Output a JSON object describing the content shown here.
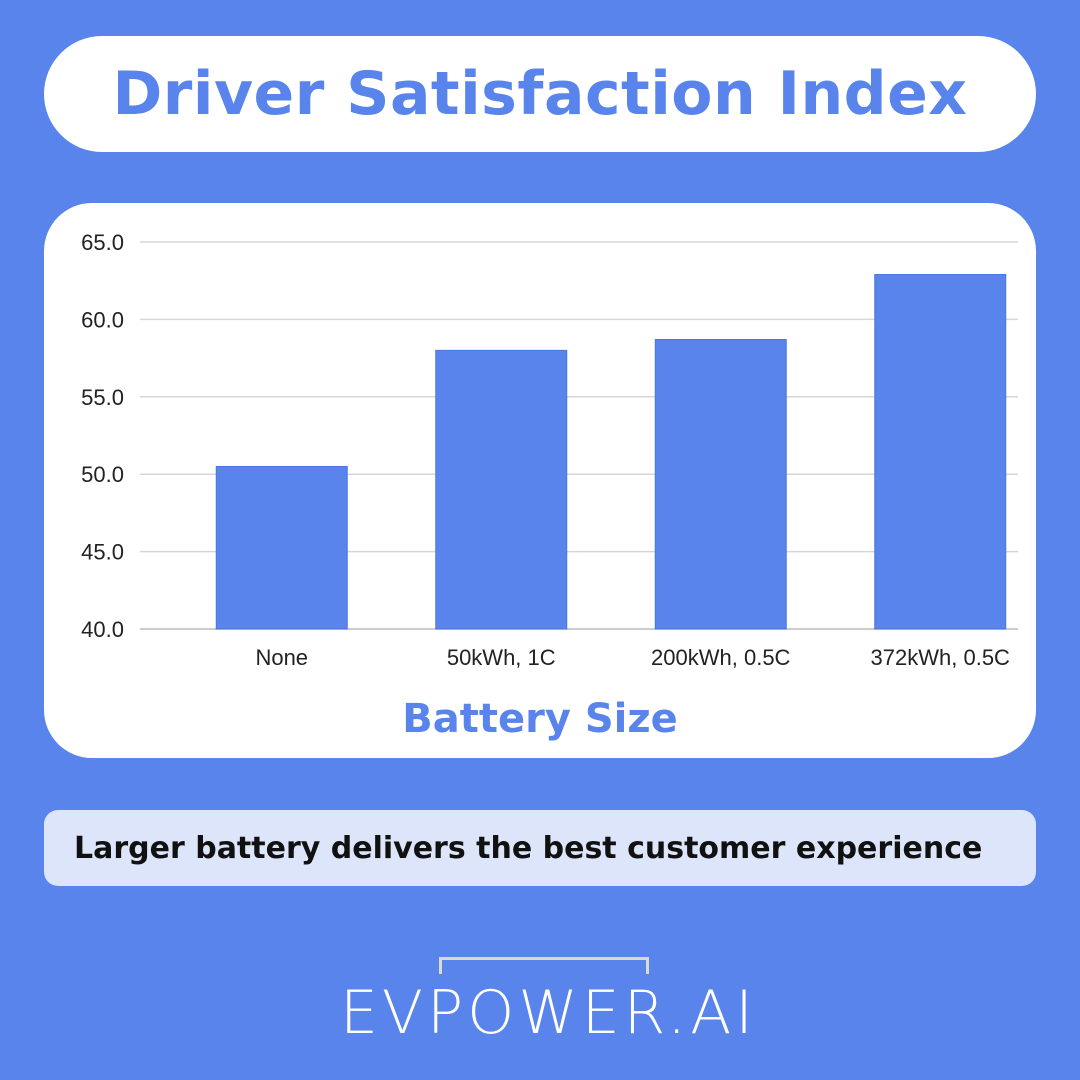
{
  "header": {
    "title": "Driver Satisfaction Index"
  },
  "chart_data": {
    "type": "bar",
    "title": "Driver Satisfaction Index",
    "xlabel": "Battery Size",
    "ylabel": "",
    "categories": [
      "None",
      "50kWh, 1C",
      "200kWh, 0.5C",
      "372kWh, 0.5C"
    ],
    "values": [
      50.5,
      58.0,
      58.7,
      62.9
    ],
    "ylim": [
      40,
      65
    ],
    "yticks": [
      "40.0",
      "45.0",
      "50.0",
      "55.0",
      "60.0",
      "65.0"
    ],
    "grid": true,
    "bar_color": "#5884ec"
  },
  "caption": "Larger battery delivers the best customer experience",
  "logo": {
    "text": "EVPOWER.AI"
  }
}
